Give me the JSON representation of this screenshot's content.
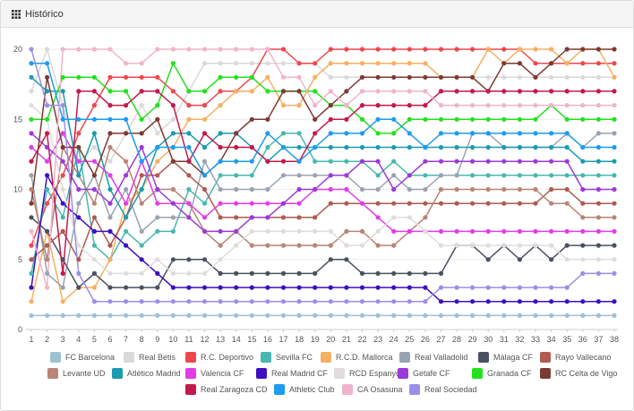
{
  "header": {
    "title": "Histórico",
    "icon": "grid-icon"
  },
  "chart_data": {
    "type": "line",
    "title": "",
    "xlabel": "",
    "ylabel": "",
    "x": [
      1,
      2,
      3,
      4,
      5,
      6,
      7,
      8,
      9,
      10,
      11,
      12,
      13,
      14,
      15,
      16,
      17,
      18,
      19,
      20,
      21,
      22,
      23,
      24,
      25,
      26,
      27,
      28,
      29,
      30,
      31,
      32,
      33,
      34,
      35,
      36,
      37,
      38
    ],
    "xlim": [
      1,
      38
    ],
    "ylim": [
      0,
      20
    ],
    "yticks": [
      0,
      5,
      10,
      15,
      20
    ],
    "grid": true,
    "legend": "bottom",
    "series": [
      {
        "name": "FC Barcelona",
        "color": "#9ec0d2",
        "values": [
          1,
          1,
          1,
          1,
          1,
          1,
          1,
          1,
          1,
          1,
          1,
          1,
          1,
          1,
          1,
          1,
          1,
          1,
          1,
          1,
          1,
          1,
          1,
          1,
          1,
          1,
          1,
          1,
          1,
          1,
          1,
          1,
          1,
          1,
          1,
          1,
          1,
          1
        ]
      },
      {
        "name": "Real Betis",
        "color": "#d9d9d9",
        "values": [
          17,
          20,
          16,
          12,
          13,
          12,
          14,
          16,
          14,
          15,
          17,
          19,
          19,
          19,
          19,
          19,
          19,
          19,
          19,
          18,
          18,
          18,
          18,
          18,
          18,
          18,
          18,
          18,
          18,
          18,
          18,
          18,
          18,
          18,
          18,
          18,
          18,
          18
        ]
      },
      {
        "name": "R.C. Deportivo",
        "color": "#f0474d",
        "values": [
          6,
          9,
          11,
          14,
          16,
          18,
          18,
          18,
          18,
          17,
          16,
          16,
          17,
          17,
          18,
          20,
          20,
          19,
          19,
          20,
          20,
          20,
          20,
          20,
          20,
          20,
          20,
          20,
          20,
          20,
          20,
          20,
          19,
          19,
          19,
          19,
          19,
          19
        ]
      },
      {
        "name": "Sevilla FC",
        "color": "#48b8b0",
        "values": [
          4,
          10,
          8,
          13,
          6,
          5,
          7,
          6,
          7,
          7,
          10,
          9,
          11,
          11,
          11,
          13,
          14,
          14,
          12,
          12,
          12,
          12,
          11,
          12,
          11,
          11,
          11,
          11,
          11,
          11,
          11,
          11,
          11,
          11,
          11,
          11,
          11,
          11
        ]
      },
      {
        "name": "R.C.D. Mallorca",
        "color": "#f5b062",
        "values": [
          2,
          7,
          2,
          3,
          3,
          5,
          9,
          10,
          12,
          13,
          15,
          15,
          16,
          17,
          17,
          18,
          16,
          16,
          18,
          19,
          19,
          19,
          19,
          19,
          19,
          19,
          18,
          18,
          18,
          20,
          19,
          20,
          20,
          20,
          19,
          20,
          20,
          18
        ]
      },
      {
        "name": "Real Valladolid",
        "color": "#9aa3b2",
        "values": [
          11,
          4,
          3,
          9,
          11,
          8,
          10,
          7,
          8,
          8,
          8,
          12,
          10,
          10,
          10,
          10,
          11,
          11,
          11,
          11,
          11,
          10,
          10,
          11,
          10,
          10,
          11,
          11,
          14,
          14,
          13,
          13,
          13,
          13,
          14,
          13,
          14,
          14
        ]
      },
      {
        "name": "Málaga CF",
        "color": "#4a5160",
        "values": [
          8,
          7,
          5,
          3,
          4,
          3,
          3,
          3,
          3,
          5,
          5,
          5,
          4,
          4,
          4,
          4,
          4,
          4,
          4,
          5,
          5,
          4,
          4,
          4,
          4,
          4,
          4,
          6,
          6,
          5,
          6,
          5,
          6,
          5,
          6,
          6,
          6,
          6
        ]
      },
      {
        "name": "Rayo Vallecano",
        "color": "#b05a50",
        "values": [
          5,
          6,
          7,
          5,
          8,
          6,
          8,
          11,
          11,
          12,
          11,
          10,
          8,
          8,
          8,
          8,
          8,
          8,
          8,
          9,
          9,
          9,
          9,
          9,
          9,
          9,
          9,
          9,
          9,
          9,
          9,
          9,
          9,
          10,
          10,
          9,
          9,
          9
        ]
      },
      {
        "name": "Levante UD",
        "color": "#b88576",
        "values": [
          10,
          5,
          13,
          11,
          9,
          13,
          12,
          9,
          10,
          10,
          9,
          7,
          6,
          7,
          6,
          6,
          6,
          6,
          6,
          6,
          7,
          7,
          6,
          6,
          7,
          8,
          10,
          10,
          10,
          10,
          10,
          10,
          10,
          9,
          9,
          8,
          8,
          8
        ]
      },
      {
        "name": "Atlético Madrid",
        "color": "#1a9bb0",
        "values": [
          18,
          17,
          17,
          11,
          14,
          10,
          8,
          10,
          13,
          14,
          14,
          13,
          14,
          14,
          13,
          12,
          13,
          13,
          13,
          13,
          13,
          13,
          13,
          13,
          13,
          13,
          13,
          13,
          13,
          13,
          13,
          13,
          13,
          13,
          13,
          12,
          12,
          12
        ]
      },
      {
        "name": "Valencia CF",
        "color": "#e03de8",
        "values": [
          13,
          12,
          14,
          12,
          12,
          11,
          9,
          12,
          9,
          9,
          9,
          8,
          9,
          9,
          9,
          9,
          9,
          9,
          10,
          10,
          10,
          9,
          8,
          7,
          7,
          7,
          7,
          7,
          7,
          7,
          7,
          7,
          7,
          7,
          7,
          7,
          7,
          7
        ]
      },
      {
        "name": "Real Madrid CF",
        "color": "#3d0fc0",
        "values": [
          3,
          11,
          9,
          8,
          7,
          7,
          6,
          5,
          4,
          3,
          3,
          3,
          3,
          3,
          3,
          3,
          3,
          3,
          3,
          3,
          3,
          3,
          3,
          3,
          3,
          3,
          2,
          2,
          2,
          2,
          2,
          2,
          2,
          2,
          2,
          2,
          2,
          2
        ]
      },
      {
        "name": "RCD Espanyol",
        "color": "#e0dcdc",
        "values": [
          16,
          15,
          10,
          6,
          5,
          4,
          4,
          4,
          5,
          4,
          4,
          4,
          5,
          6,
          7,
          7,
          7,
          7,
          7,
          7,
          6,
          6,
          7,
          8,
          8,
          7,
          6,
          6,
          6,
          6,
          6,
          6,
          6,
          6,
          5,
          5,
          5,
          5
        ]
      },
      {
        "name": "Getafe CF",
        "color": "#9a3ad8",
        "values": [
          14,
          13,
          12,
          10,
          10,
          9,
          11,
          13,
          10,
          9,
          8,
          7,
          7,
          7,
          8,
          8,
          9,
          10,
          10,
          11,
          11,
          12,
          12,
          10,
          11,
          12,
          12,
          12,
          12,
          12,
          12,
          12,
          12,
          12,
          12,
          10,
          10,
          10
        ]
      },
      {
        "name": "Granada CF",
        "color": "#25e01d",
        "values": [
          15,
          15,
          18,
          18,
          18,
          17,
          17,
          15,
          16,
          19,
          17,
          17,
          18,
          18,
          18,
          17,
          17,
          17,
          17,
          16,
          16,
          15,
          14,
          14,
          15,
          15,
          15,
          15,
          15,
          15,
          15,
          15,
          15,
          16,
          15,
          15,
          15,
          15
        ]
      },
      {
        "name": "RC Celta de Vigo",
        "color": "#7d3a33",
        "values": [
          9,
          18,
          13,
          13,
          11,
          14,
          14,
          14,
          15,
          12,
          12,
          11,
          12,
          14,
          15,
          15,
          17,
          17,
          15,
          16,
          17,
          18,
          18,
          18,
          18,
          18,
          18,
          18,
          18,
          17,
          19,
          19,
          18,
          19,
          20,
          20,
          20,
          20
        ]
      },
      {
        "name": "Real Zaragoza CD",
        "color": "#c21a4a",
        "values": [
          12,
          14,
          4,
          17,
          17,
          16,
          16,
          17,
          17,
          16,
          12,
          14,
          13,
          13,
          13,
          12,
          12,
          12,
          14,
          15,
          15,
          16,
          16,
          16,
          16,
          16,
          17,
          17,
          17,
          17,
          17,
          17,
          17,
          17,
          17,
          17,
          17,
          17
        ]
      },
      {
        "name": "Athletic Club",
        "color": "#1b9cf0",
        "values": [
          19,
          19,
          15,
          15,
          15,
          15,
          15,
          12,
          13,
          13,
          13,
          11,
          12,
          12,
          12,
          14,
          13,
          12,
          13,
          14,
          14,
          14,
          15,
          15,
          14,
          13,
          14,
          14,
          14,
          14,
          14,
          14,
          14,
          14,
          14,
          13,
          13,
          13
        ]
      },
      {
        "name": "CA Osasuna",
        "color": "#f0b4cc",
        "values": [
          7,
          3,
          20,
          20,
          20,
          20,
          19,
          19,
          20,
          20,
          20,
          20,
          20,
          20,
          20,
          20,
          18,
          18,
          16,
          17,
          16,
          17,
          17,
          17,
          17,
          17,
          16,
          16,
          16,
          16,
          16,
          16,
          16,
          16,
          16,
          16,
          16,
          16
        ]
      },
      {
        "name": "Real Sociedad",
        "color": "#9a8fe8",
        "values": [
          20,
          16,
          16,
          4,
          2,
          2,
          2,
          2,
          2,
          2,
          2,
          2,
          2,
          2,
          2,
          2,
          2,
          2,
          2,
          2,
          2,
          2,
          2,
          2,
          2,
          2,
          3,
          3,
          3,
          3,
          3,
          3,
          3,
          3,
          3,
          4,
          4,
          4
        ]
      }
    ]
  }
}
